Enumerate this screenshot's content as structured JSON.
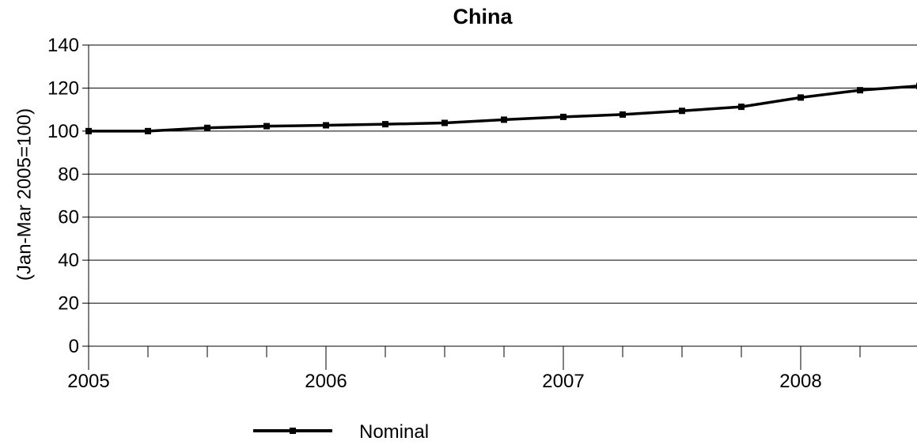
{
  "chart_data": {
    "type": "line",
    "title": "China",
    "xlabel": "",
    "ylabel": "(Jan-Mar 2005=100)",
    "x": [
      "2005 Q1",
      "2005 Q2",
      "2005 Q3",
      "2005 Q4",
      "2006 Q1",
      "2006 Q2",
      "2006 Q3",
      "2006 Q4",
      "2007 Q1",
      "2007 Q2",
      "2007 Q3",
      "2007 Q4",
      "2008 Q1",
      "2008 Q2",
      "2008 Q3"
    ],
    "x_tick_labels": [
      "2005",
      "2006",
      "2007",
      "2008"
    ],
    "y_ticks": [
      0,
      20,
      40,
      60,
      80,
      100,
      120,
      140
    ],
    "ylim": [
      0,
      140
    ],
    "grid": true,
    "legend_position": "bottom",
    "series": [
      {
        "name": "Nominal",
        "color": "#000000",
        "marker": "square",
        "values": [
          100,
          100,
          101.5,
          102.3,
          102.7,
          103.2,
          103.8,
          105.3,
          106.6,
          107.7,
          109.4,
          111.3,
          115.6,
          119,
          121
        ]
      }
    ]
  }
}
